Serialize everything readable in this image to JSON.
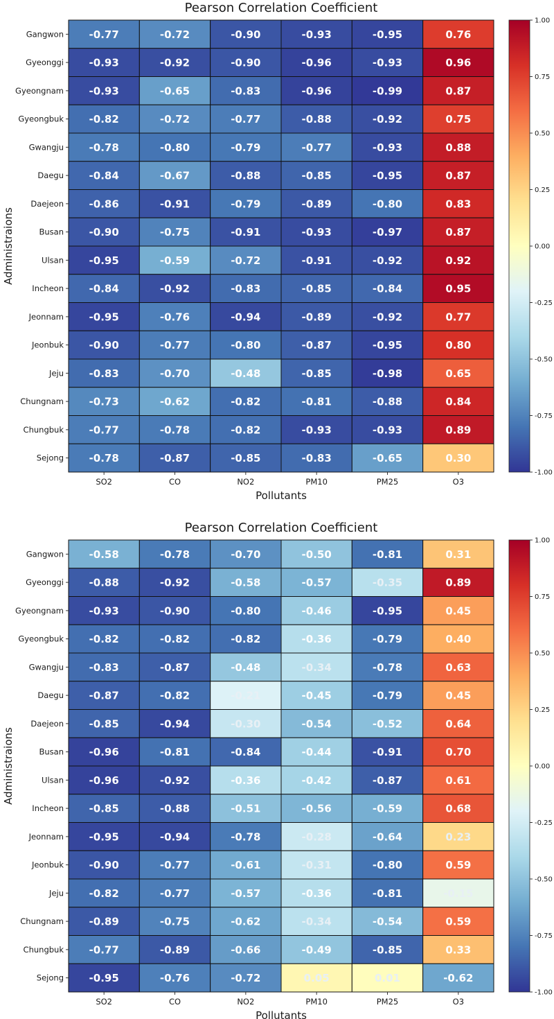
{
  "chart_data": [
    {
      "type": "heatmap",
      "title": "Pearson Correlation Coefficient",
      "xlabel": "Pollutants",
      "ylabel": "Administraions",
      "x": [
        "SO2",
        "CO",
        "NO2",
        "PM10",
        "PM25",
        "O3"
      ],
      "y": [
        "Gangwon",
        "Gyeonggi",
        "Gyeongnam",
        "Gyeongbuk",
        "Gwangju",
        "Daegu",
        "Daejeon",
        "Busan",
        "Ulsan",
        "Incheon",
        "Jeonnam",
        "Jeonbuk",
        "Jeju",
        "Chungnam",
        "Chungbuk",
        "Sejong"
      ],
      "values": [
        [
          -0.77,
          -0.72,
          -0.9,
          -0.93,
          -0.95,
          0.76
        ],
        [
          -0.93,
          -0.92,
          -0.9,
          -0.96,
          -0.93,
          0.96
        ],
        [
          -0.93,
          -0.65,
          -0.83,
          -0.96,
          -0.99,
          0.87
        ],
        [
          -0.82,
          -0.72,
          -0.77,
          -0.88,
          -0.92,
          0.75
        ],
        [
          -0.78,
          -0.8,
          -0.79,
          -0.77,
          -0.93,
          0.88
        ],
        [
          -0.84,
          -0.67,
          -0.88,
          -0.85,
          -0.95,
          0.87
        ],
        [
          -0.86,
          -0.91,
          -0.79,
          -0.89,
          -0.8,
          0.83
        ],
        [
          -0.9,
          -0.75,
          -0.91,
          -0.93,
          -0.97,
          0.87
        ],
        [
          -0.95,
          -0.59,
          -0.72,
          -0.91,
          -0.92,
          0.92
        ],
        [
          -0.84,
          -0.92,
          -0.83,
          -0.85,
          -0.84,
          0.95
        ],
        [
          -0.95,
          -0.76,
          -0.94,
          -0.89,
          -0.92,
          0.77
        ],
        [
          -0.9,
          -0.77,
          -0.8,
          -0.87,
          -0.95,
          0.8
        ],
        [
          -0.83,
          -0.7,
          -0.48,
          -0.85,
          -0.98,
          0.65
        ],
        [
          -0.73,
          -0.62,
          -0.82,
          -0.81,
          -0.88,
          0.84
        ],
        [
          -0.77,
          -0.78,
          -0.82,
          -0.93,
          -0.93,
          0.89
        ],
        [
          -0.78,
          -0.87,
          -0.85,
          -0.83,
          -0.65,
          0.3
        ]
      ],
      "colorbar": {
        "range": [
          -1.0,
          1.0
        ],
        "ticks": [
          "1.00",
          "0.75",
          "0.50",
          "0.25",
          "0.00",
          "-0.25",
          "-0.50",
          "-0.75",
          "-1.00"
        ],
        "colormap": "RdYlBu_r"
      }
    },
    {
      "type": "heatmap",
      "title": "Pearson Correlation Coefficient",
      "xlabel": "Pollutants",
      "ylabel": "Administraions",
      "x": [
        "SO2",
        "CO",
        "NO2",
        "PM10",
        "PM25",
        "O3"
      ],
      "y": [
        "Gangwon",
        "Gyeonggi",
        "Gyeongnam",
        "Gyeongbuk",
        "Gwangju",
        "Daegu",
        "Daejeon",
        "Busan",
        "Ulsan",
        "Incheon",
        "Jeonnam",
        "Jeonbuk",
        "Jeju",
        "Chungnam",
        "Chungbuk",
        "Sejong"
      ],
      "values": [
        [
          -0.58,
          -0.78,
          -0.7,
          -0.5,
          -0.81,
          0.31
        ],
        [
          -0.88,
          -0.92,
          -0.58,
          -0.57,
          -0.35,
          0.89
        ],
        [
          -0.93,
          -0.9,
          -0.8,
          -0.46,
          -0.95,
          0.45
        ],
        [
          -0.82,
          -0.82,
          -0.82,
          -0.36,
          -0.79,
          0.4
        ],
        [
          -0.83,
          -0.87,
          -0.48,
          -0.34,
          -0.78,
          0.63
        ],
        [
          -0.87,
          -0.82,
          -0.21,
          -0.45,
          -0.79,
          0.45
        ],
        [
          -0.85,
          -0.94,
          -0.3,
          -0.54,
          -0.52,
          0.64
        ],
        [
          -0.96,
          -0.81,
          -0.84,
          -0.44,
          -0.91,
          0.7
        ],
        [
          -0.96,
          -0.92,
          -0.36,
          -0.42,
          -0.87,
          0.61
        ],
        [
          -0.85,
          -0.88,
          -0.51,
          -0.56,
          -0.59,
          0.68
        ],
        [
          -0.95,
          -0.94,
          -0.78,
          -0.28,
          -0.64,
          0.23
        ],
        [
          -0.9,
          -0.77,
          -0.61,
          -0.31,
          -0.8,
          0.59
        ],
        [
          -0.82,
          -0.77,
          -0.57,
          -0.36,
          -0.81,
          -0.15
        ],
        [
          -0.89,
          -0.75,
          -0.62,
          -0.34,
          -0.54,
          0.59
        ],
        [
          -0.77,
          -0.89,
          -0.66,
          -0.49,
          -0.85,
          0.33
        ],
        [
          -0.95,
          -0.76,
          -0.72,
          0.05,
          0.01,
          -0.62
        ]
      ],
      "colorbar": {
        "range": [
          -1.0,
          1.0
        ],
        "ticks": [
          "1.00",
          "0.75",
          "0.50",
          "0.25",
          "0.00",
          "-0.25",
          "-0.50",
          "-0.75",
          "-1.00"
        ],
        "colormap": "RdYlBu_r"
      }
    }
  ]
}
